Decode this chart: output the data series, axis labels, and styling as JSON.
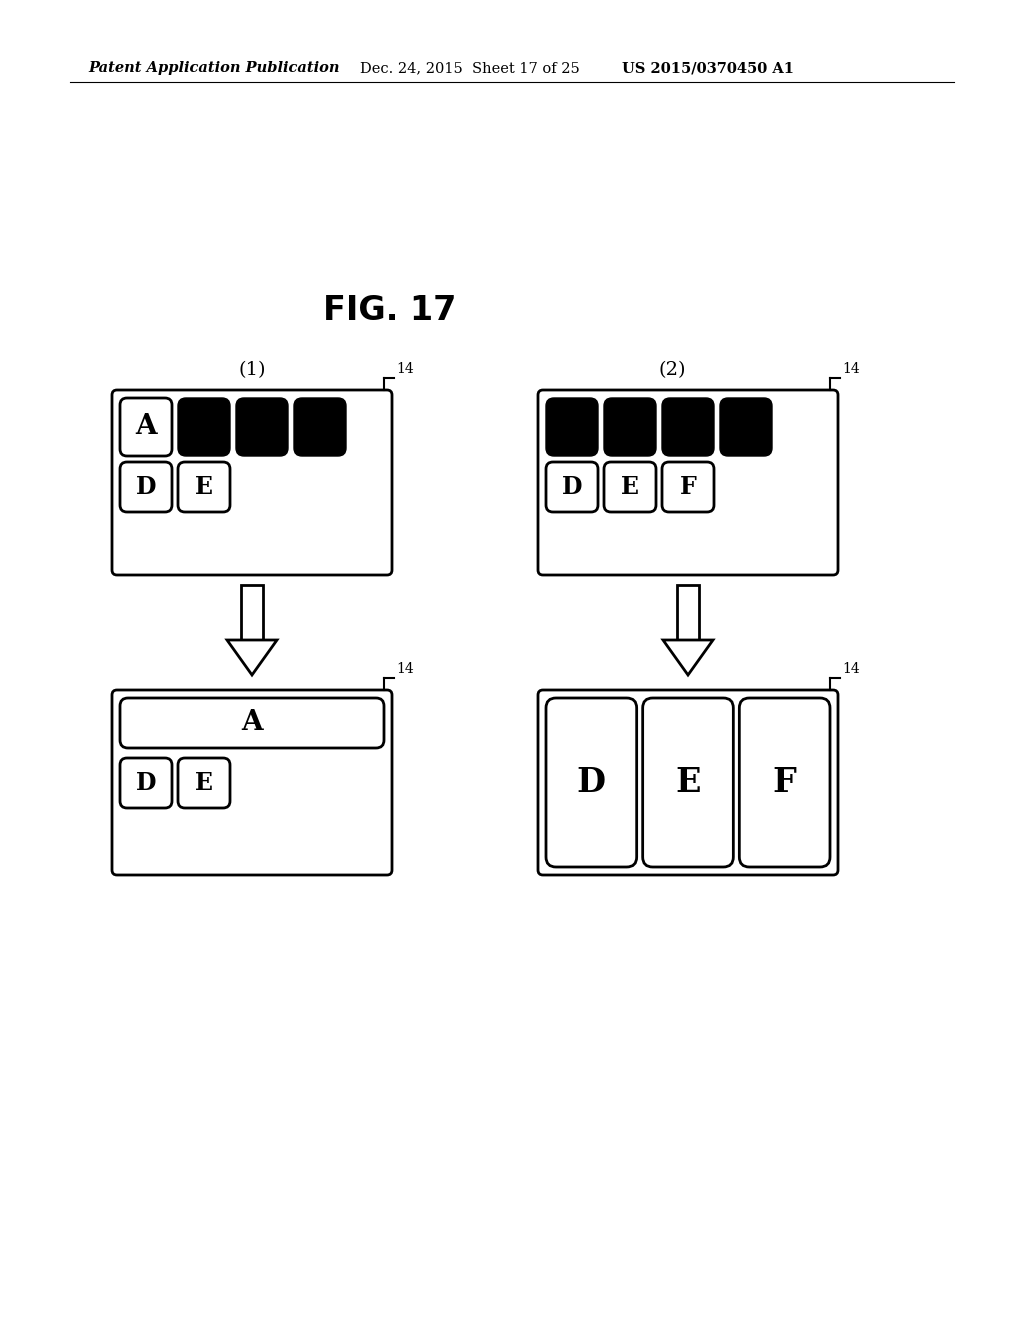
{
  "title": "FIG. 17",
  "header_left": "Patent Application Publication",
  "header_mid": "Dec. 24, 2015  Sheet 17 of 25",
  "header_right": "US 2015/0370450 A1",
  "background_color": "#ffffff",
  "label_14": "14",
  "col1_label": "(1)",
  "col2_label": "(2)",
  "fig_width": 10.24,
  "fig_height": 13.2,
  "dpi": 100
}
